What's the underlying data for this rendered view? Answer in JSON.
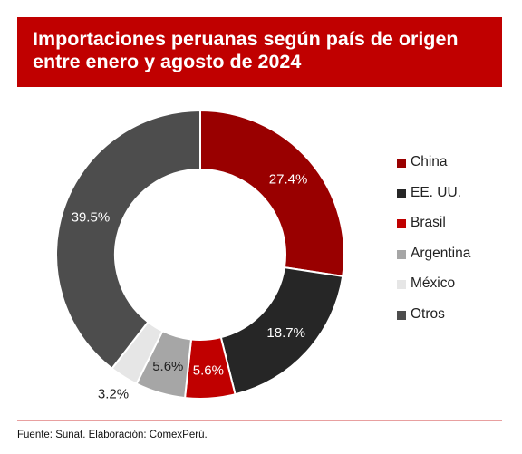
{
  "title": {
    "line1": "Importaciones peruanas según país de origen",
    "line2": "entre enero y agosto de 2024"
  },
  "source": "Fuente: Sunat. Elaboración: ComexPerú.",
  "colors": {
    "header_bg": "#c00000",
    "title_text": "#ffffff"
  },
  "chart_data": {
    "type": "pie",
    "variant": "donut",
    "legend_position": "right",
    "slices": [
      {
        "label": "China",
        "value": 27.4,
        "display": "27.4%",
        "color": "#990000",
        "label_color": "#ffffff"
      },
      {
        "label": "EE. UU.",
        "value": 18.7,
        "display": "18.7%",
        "color": "#262626",
        "label_color": "#ffffff"
      },
      {
        "label": "Brasil",
        "value": 5.6,
        "display": "5.6%",
        "color": "#c00000",
        "label_color": "#ffffff"
      },
      {
        "label": "Argentina",
        "value": 5.6,
        "display": "5.6%",
        "color": "#a6a6a6",
        "label_color": "#222222"
      },
      {
        "label": "México",
        "value": 3.2,
        "display": "3.2%",
        "color": "#e6e6e6",
        "label_color": "#222222"
      },
      {
        "label": "Otros",
        "value": 39.5,
        "display": "39.5%",
        "color": "#4d4d4d",
        "label_color": "#ffffff"
      }
    ]
  }
}
